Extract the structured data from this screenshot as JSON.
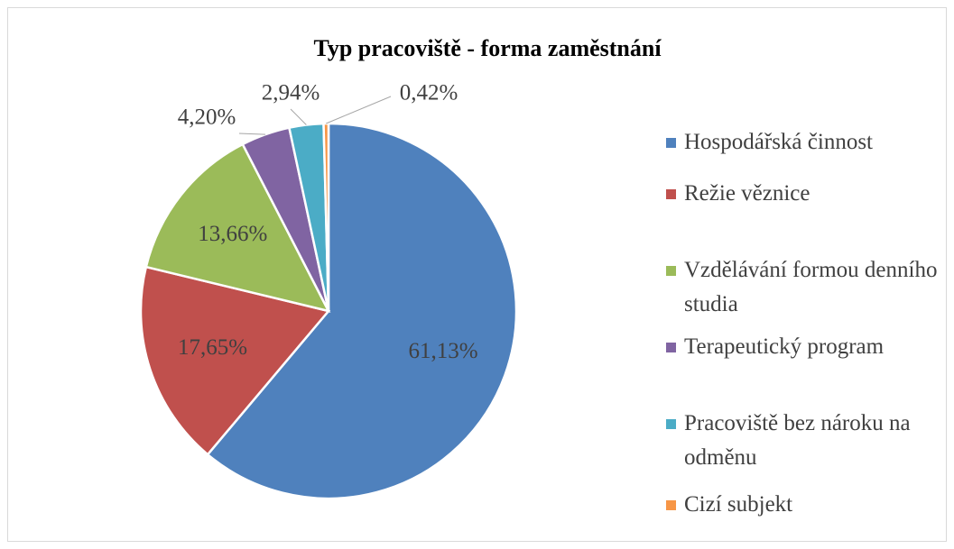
{
  "chart_data": {
    "type": "pie",
    "title": "Typ pracoviště - forma zaměstnání",
    "categories": [
      "Hospodářská činnost",
      "Režie věznice",
      "Vzdělávání formou denního studia",
      "Terapeutický program",
      "Pracoviště bez nároku na odměnu",
      "Cizí subjekt"
    ],
    "values": [
      61.13,
      17.65,
      13.66,
      4.2,
      2.94,
      0.42
    ],
    "value_labels": [
      "61,13%",
      "17,65%",
      "13,66%",
      "4,20%",
      "2,94%",
      "0,42%"
    ],
    "colors": [
      "#4f81bd",
      "#c0504d",
      "#9bbb59",
      "#8064a2",
      "#4bacc6",
      "#f79646"
    ],
    "legend": "right"
  }
}
